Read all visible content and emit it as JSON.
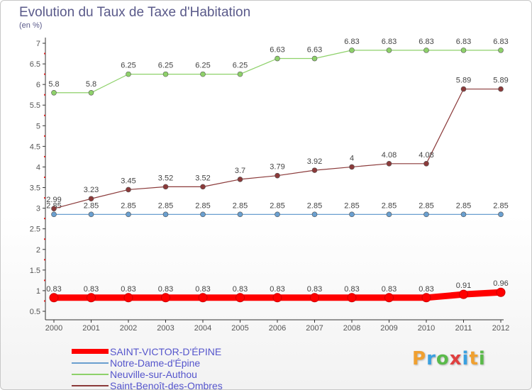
{
  "header": {
    "title": "Evolution du Taux de Taxe d'Habitation",
    "unit": "(en %)"
  },
  "logo": {
    "letters": [
      "P",
      "r",
      "o",
      "x",
      "i",
      "t",
      "i"
    ],
    "colors": [
      "#f0a030",
      "#3aa0e0",
      "#5aba4a",
      "#e04040",
      "#3aa0e0",
      "#f0a030",
      "#5aba4a"
    ]
  },
  "chart_data": {
    "type": "line",
    "x": [
      "2000",
      "2001",
      "2002",
      "2003",
      "2004",
      "2005",
      "2006",
      "2007",
      "2008",
      "2009",
      "2010",
      "2011",
      "2012"
    ],
    "ylim": [
      0.5,
      7
    ],
    "yticks": [
      "0.5",
      "1",
      "1.5",
      "2",
      "2.5",
      "3",
      "3.5",
      "4",
      "4.5",
      "5",
      "5.5",
      "6",
      "6.5",
      "7"
    ],
    "grid": false,
    "legend_position": "bottom-left",
    "series": [
      {
        "name": "SAINT-VICTOR-D'ÉPINE",
        "color": "#ff0000",
        "values": [
          0.83,
          0.83,
          0.83,
          0.83,
          0.83,
          0.83,
          0.83,
          0.83,
          0.83,
          0.83,
          0.83,
          0.91,
          0.96
        ],
        "labels": [
          "0.83",
          "0.83",
          "0.83",
          "0.83",
          "0.83",
          "0.83",
          "0.83",
          "0.83",
          "0.83",
          "0.83",
          "0.83",
          "0.91",
          "0.96"
        ]
      },
      {
        "name": "Notre-Dame-d'Épine",
        "color": "#6a9fcf",
        "values": [
          2.85,
          2.85,
          2.85,
          2.85,
          2.85,
          2.85,
          2.85,
          2.85,
          2.85,
          2.85,
          2.85,
          2.85,
          2.85
        ],
        "labels": [
          "2.85",
          "2.85",
          "2.85",
          "2.85",
          "2.85",
          "2.85",
          "2.85",
          "2.85",
          "2.85",
          "2.85",
          "2.85",
          "2.85",
          "2.85"
        ]
      },
      {
        "name": "Neuville-sur-Authou",
        "color": "#8ed16a",
        "values": [
          5.8,
          5.8,
          6.25,
          6.25,
          6.25,
          6.25,
          6.63,
          6.63,
          6.83,
          6.83,
          6.83,
          6.83,
          6.83
        ],
        "labels": [
          "5.8",
          "5.8",
          "6.25",
          "6.25",
          "6.25",
          "6.25",
          "6.63",
          "6.63",
          "6.83",
          "6.83",
          "6.83",
          "6.83",
          "6.83"
        ]
      },
      {
        "name": "Saint-Benoît-des-Ombres",
        "color": "#8b3a3a",
        "values": [
          2.99,
          3.23,
          3.45,
          3.52,
          3.52,
          3.7,
          3.79,
          3.92,
          4,
          4.08,
          4.08,
          5.89,
          5.89
        ],
        "labels": [
          "2.99",
          "3.23",
          "3.45",
          "3.52",
          "3.52",
          "3.7",
          "3.79",
          "3.92",
          "4",
          "4.08",
          "4.08",
          "5.89",
          "5.89"
        ]
      }
    ]
  }
}
